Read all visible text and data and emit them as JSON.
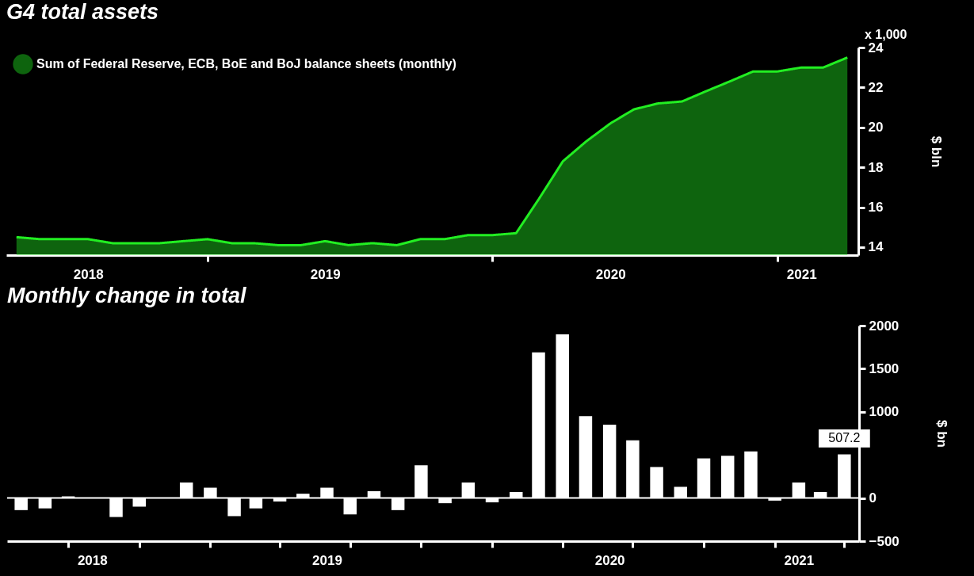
{
  "chart_data": [
    {
      "type": "area",
      "title": "G4 total assets",
      "ylabel": "$ bln",
      "annotations": [
        "x 1,000"
      ],
      "legend": "top left",
      "x": [
        "2018-05",
        "2018-06",
        "2018-07",
        "2018-08",
        "2018-09",
        "2018-10",
        "2018-11",
        "2018-12",
        "2019-01",
        "2019-02",
        "2019-03",
        "2019-04",
        "2019-05",
        "2019-06",
        "2019-07",
        "2019-08",
        "2019-09",
        "2019-10",
        "2019-11",
        "2019-12",
        "2020-01",
        "2020-02",
        "2020-03",
        "2020-04",
        "2020-05",
        "2020-06",
        "2020-07",
        "2020-08",
        "2020-09",
        "2020-10",
        "2020-11",
        "2020-12",
        "2021-01",
        "2021-02",
        "2021-03",
        "2021-04"
      ],
      "series": [
        {
          "name": "Sum of Federal Reserve, ECB, BoE and BoJ balance sheets (monthly)",
          "color": "#22ee22",
          "values": [
            14.5,
            14.4,
            14.4,
            14.4,
            14.2,
            14.2,
            14.2,
            14.3,
            14.4,
            14.2,
            14.2,
            14.1,
            14.1,
            14.3,
            14.1,
            14.2,
            14.1,
            14.4,
            14.4,
            14.6,
            14.6,
            14.7,
            16.4,
            18.3,
            19.3,
            20.2,
            20.9,
            21.2,
            21.3,
            21.8,
            22.3,
            22.8,
            22.8,
            23.0,
            23.0,
            23.5
          ]
        }
      ],
      "xlim": [
        "2018-04-18",
        "2021-04-15"
      ],
      "xticks": [
        {
          "value": "2018-08-01",
          "label": "2018"
        },
        {
          "value": "2019-01-01",
          "label": null
        },
        {
          "value": "2019-06-01",
          "label": "2019"
        },
        {
          "value": "2020-01-01",
          "label": null
        },
        {
          "value": "2020-06-01",
          "label": "2020"
        },
        {
          "value": "2021-01-01",
          "label": null
        },
        {
          "value": "2021-02-01",
          "label": "2021"
        }
      ],
      "ylim": [
        13.6,
        24
      ],
      "yticks": [
        14,
        16,
        18,
        20,
        22,
        24
      ]
    },
    {
      "type": "bar",
      "title": "Monthly change in total",
      "ylabel": "$ bn",
      "x": [
        "2018-05",
        "2018-06",
        "2018-07",
        "2018-08",
        "2018-09",
        "2018-10",
        "2018-11",
        "2018-12",
        "2019-01",
        "2019-02",
        "2019-03",
        "2019-04",
        "2019-05",
        "2019-06",
        "2019-07",
        "2019-08",
        "2019-09",
        "2019-10",
        "2019-11",
        "2019-12",
        "2020-01",
        "2020-02",
        "2020-03",
        "2020-04",
        "2020-05",
        "2020-06",
        "2020-07",
        "2020-08",
        "2020-09",
        "2020-10",
        "2020-11",
        "2020-12",
        "2021-01",
        "2021-02",
        "2021-03",
        "2021-04"
      ],
      "series": [
        {
          "color": "#ffffff",
          "values": [
            -140,
            -120,
            20,
            0,
            -220,
            -100,
            0,
            180,
            120,
            -210,
            -120,
            -40,
            50,
            120,
            -190,
            80,
            -140,
            380,
            -60,
            180,
            -50,
            70,
            1690,
            1900,
            950,
            850,
            670,
            360,
            130,
            460,
            490,
            540,
            -30,
            180,
            70,
            507.2
          ],
          "value_labels": [
            null,
            null,
            null,
            null,
            null,
            null,
            null,
            null,
            null,
            null,
            null,
            null,
            null,
            null,
            null,
            null,
            null,
            null,
            null,
            null,
            null,
            null,
            null,
            null,
            null,
            null,
            null,
            null,
            null,
            null,
            null,
            null,
            null,
            null,
            null,
            "507.2"
          ]
        }
      ],
      "xlim": [
        "2018-04-18",
        "2021-04-15"
      ],
      "xticks": [
        {
          "value": "2018-07-01",
          "label": null
        },
        {
          "value": "2018-08-01",
          "label": "2018"
        },
        {
          "value": "2018-10-01",
          "label": null
        },
        {
          "value": "2019-01-01",
          "label": null
        },
        {
          "value": "2019-04-01",
          "label": null
        },
        {
          "value": "2019-06-01",
          "label": "2019"
        },
        {
          "value": "2019-07-01",
          "label": null
        },
        {
          "value": "2019-10-01",
          "label": null
        },
        {
          "value": "2020-01-01",
          "label": null
        },
        {
          "value": "2020-04-01",
          "label": null
        },
        {
          "value": "2020-06-01",
          "label": "2020"
        },
        {
          "value": "2020-07-01",
          "label": null
        },
        {
          "value": "2020-10-01",
          "label": null
        },
        {
          "value": "2021-01-01",
          "label": null
        },
        {
          "value": "2021-02-01",
          "label": "2021"
        },
        {
          "value": "2021-04-01",
          "label": null
        }
      ],
      "ylim": [
        -500,
        2000
      ],
      "yticks": [
        -500,
        0,
        1000,
        1500,
        2000
      ],
      "ref_lines": [
        {
          "axis": "y",
          "value": 0
        }
      ]
    }
  ]
}
